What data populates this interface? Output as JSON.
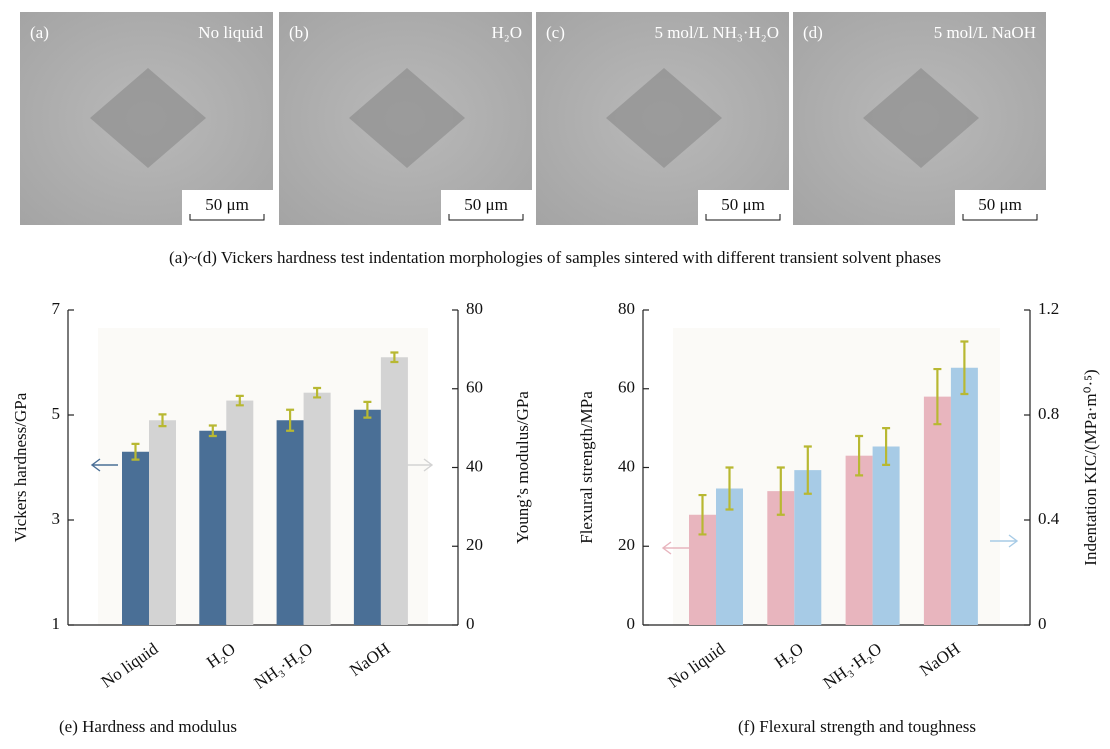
{
  "panels": [
    {
      "label": "(a)",
      "title": "No liquid",
      "scale_bar": "50 μm"
    },
    {
      "label": "(b)",
      "title": "H₂O",
      "scale_bar": "50 μm"
    },
    {
      "label": "(c)",
      "title": "5 mol/L NH₃·H₂O",
      "scale_bar": "50 μm"
    },
    {
      "label": "(d)",
      "title": "5 mol/L NaOH",
      "scale_bar": "50 μm"
    }
  ],
  "caption": "(a)~(d) Vickers hardness test indentation morphologies of samples sintered with different transient solvent phases",
  "chart_data": [
    {
      "type": "bar",
      "caption": "(e) Hardness and modulus",
      "categories": [
        "No liquid",
        "H₂O",
        "NH₃·H₂O",
        "NaOH"
      ],
      "ylabel": "Vickers hardness/GPa",
      "y2label": "Young’s modulus/GPa",
      "ylim": [
        1,
        7
      ],
      "yticks": [
        1,
        3,
        5,
        7
      ],
      "y2lim": [
        0,
        80
      ],
      "y2ticks": [
        0,
        20,
        40,
        60,
        80
      ],
      "series": [
        {
          "color": "#4a6f96",
          "values": [
            4.3,
            4.7,
            4.9,
            5.1
          ],
          "errors": [
            0.15,
            0.1,
            0.2,
            0.15
          ]
        },
        {
          "color": "#d3d3d3",
          "axis": "y2",
          "values": [
            52,
            57,
            59,
            68
          ],
          "errors": [
            1.5,
            1.2,
            1.2,
            1.2
          ]
        }
      ],
      "error_color": "#b8b832"
    },
    {
      "type": "bar",
      "caption": "(f) Flexural strength and toughness",
      "categories": [
        "No liquid",
        "H₂O",
        "NH₃·H₂O",
        "NaOH"
      ],
      "ylabel": "Flexural strength/MPa",
      "y2label": "Indentation KIC/(MPa·m⁰·⁵)",
      "ylim": [
        0,
        80
      ],
      "yticks": [
        0,
        20,
        40,
        60,
        80
      ],
      "y2lim": [
        0,
        1.2
      ],
      "y2ticks": [
        0,
        0.4,
        0.8,
        1.2
      ],
      "series": [
        {
          "color": "#e8b5be",
          "values": [
            28,
            34,
            43,
            58
          ],
          "errors": [
            5,
            6,
            5,
            7
          ]
        },
        {
          "color": "#a7cbe6",
          "axis": "y2",
          "values": [
            0.52,
            0.59,
            0.68,
            0.98
          ],
          "errors": [
            0.08,
            0.09,
            0.07,
            0.1
          ]
        }
      ],
      "error_color": "#b8b832"
    }
  ]
}
